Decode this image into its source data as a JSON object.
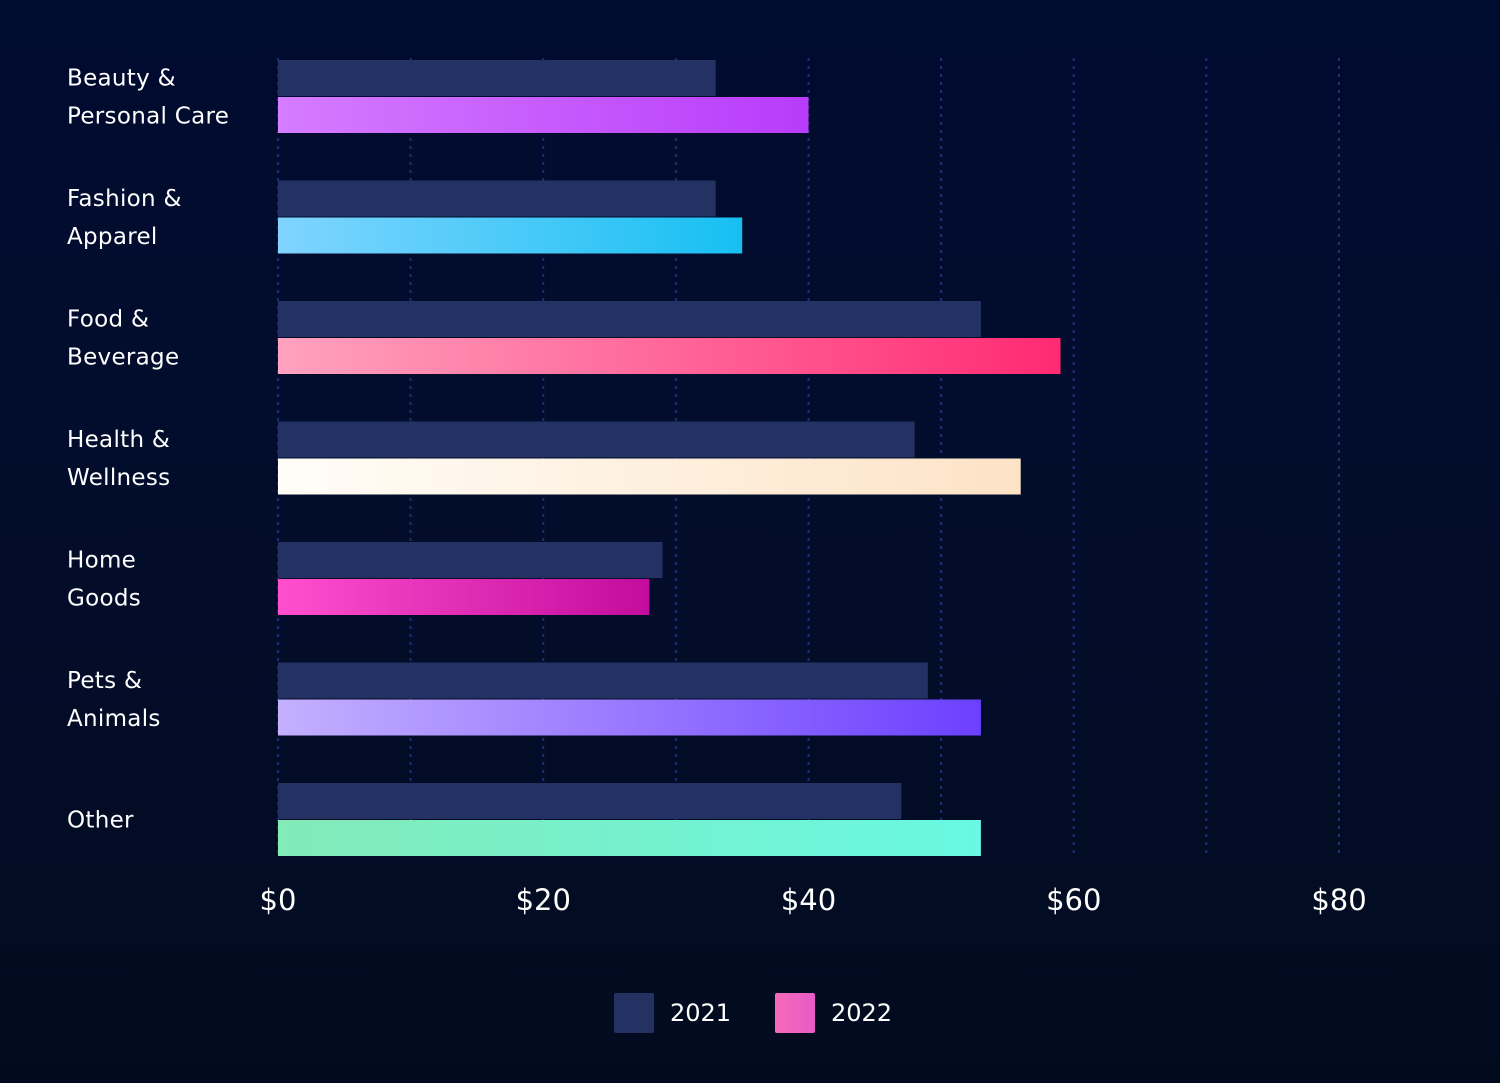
{
  "chart_data": {
    "type": "bar",
    "orientation": "horizontal",
    "categories": [
      [
        "Beauty &",
        "Personal Care"
      ],
      [
        "Fashion &",
        "Apparel"
      ],
      [
        "Food &",
        "Beverage"
      ],
      [
        "Health &",
        "Wellness"
      ],
      [
        "Home",
        "Goods"
      ],
      [
        "Pets &",
        "Animals"
      ],
      [
        "Other"
      ]
    ],
    "series": [
      {
        "name": "2021",
        "values": [
          33,
          33,
          53,
          48,
          29,
          49,
          47
        ],
        "color": "#233262"
      },
      {
        "name": "2022",
        "values": [
          40,
          35,
          59,
          56,
          28,
          53,
          53
        ],
        "gradients": [
          [
            "#d57cff",
            "#b83cfb"
          ],
          [
            "#80d4ff",
            "#17c0f2"
          ],
          [
            "#ffa2bf",
            "#ff2a73"
          ],
          [
            "#fffdf8",
            "#fde3c6"
          ],
          [
            "#ff4fce",
            "#c20c9d"
          ],
          [
            "#c4b0ff",
            "#6c40ff"
          ],
          [
            "#83eab8",
            "#68f8e3"
          ]
        ],
        "legend_gradient": [
          "#f66ab9",
          "#e75bc7"
        ]
      }
    ],
    "x_ticks": [
      {
        "value": 0,
        "label": "$0"
      },
      {
        "value": 20,
        "label": "$20"
      },
      {
        "value": 40,
        "label": "$40"
      },
      {
        "value": 60,
        "label": "$60"
      },
      {
        "value": 80,
        "label": "$80"
      }
    ],
    "grid_values": [
      0,
      10,
      20,
      30,
      40,
      50,
      60,
      70,
      80
    ],
    "xlim": [
      0,
      80
    ],
    "grid": true,
    "legend_position": "bottom-center",
    "title": "",
    "xlabel": "",
    "ylabel": ""
  }
}
